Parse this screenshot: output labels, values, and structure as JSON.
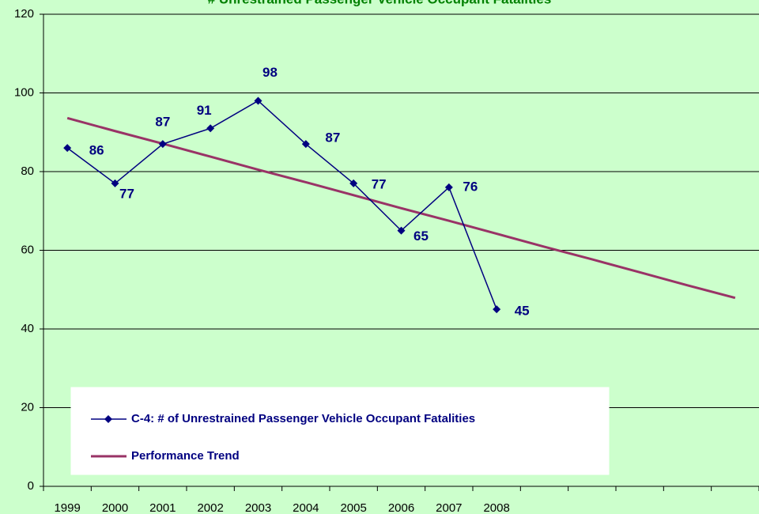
{
  "chart_data": {
    "type": "line",
    "title": "# Unrestrained Passenger Vehicle Occupant Fatalities",
    "categories": [
      "1999",
      "2000",
      "2001",
      "2002",
      "2003",
      "2004",
      "2005",
      "2006",
      "2007",
      "2008",
      null,
      null,
      null,
      null,
      null
    ],
    "series": [
      {
        "name": "C-4: # of Unrestrained Passenger Vehicle Occupant Fatalities",
        "color": "#000080",
        "marker": "diamond",
        "values": [
          86,
          77,
          87,
          91,
          98,
          87,
          77,
          65,
          76,
          45,
          null,
          null,
          null,
          null,
          null
        ],
        "data_labels": true
      },
      {
        "name": "Performance Trend",
        "color": "#993366",
        "marker": "none",
        "values": [
          93.6,
          90.3,
          87.1,
          83.8,
          80.5,
          77.3,
          74.0,
          70.7,
          67.5,
          64.2,
          60.9,
          57.7,
          54.4,
          51.1,
          47.9
        ],
        "data_labels": false
      }
    ],
    "ylim": [
      0,
      120
    ],
    "yticks": [
      0,
      20,
      40,
      60,
      80,
      100,
      120
    ],
    "grid": true
  }
}
